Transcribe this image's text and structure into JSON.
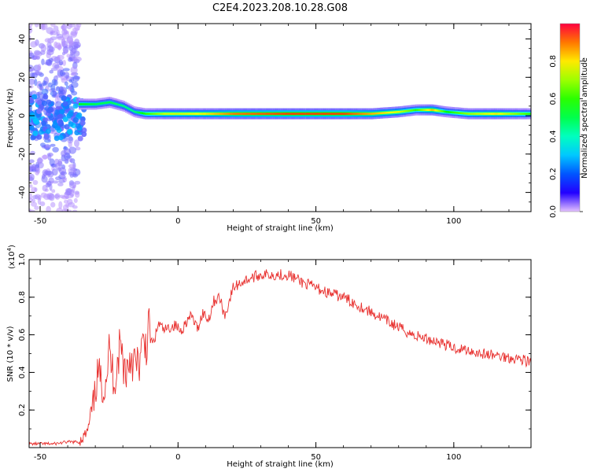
{
  "figure": {
    "title": "C2E4.2023.208.10.28.G08"
  },
  "chart_data": [
    {
      "type": "heatmap",
      "title": "C2E4.2023.208.10.28.G08",
      "xlabel": "Height of straight line (km)",
      "ylabel": "Frequency (Hz)",
      "xlim": [
        -54,
        128
      ],
      "ylim": [
        -50,
        48
      ],
      "x_ticks": [
        -50,
        0,
        50,
        100
      ],
      "x_tick_labels": [
        "-50",
        "0",
        "50",
        "100"
      ],
      "y_ticks": [
        -40,
        -20,
        0,
        20,
        40
      ],
      "y_tick_labels": [
        "-40",
        "-20",
        "0",
        "20",
        "40"
      ],
      "colorbar": {
        "label": "Normalized spectral amplitude",
        "range": [
          0,
          1
        ],
        "ticks": [
          0.0,
          0.2,
          0.4,
          0.6,
          0.8
        ],
        "tick_labels": [
          "0.0",
          "0.2",
          "0.4",
          "0.6",
          "0.8"
        ],
        "colormap": "hsl-rainbow-violet-to-red"
      },
      "ridge": [
        {
          "x": -36,
          "f": 6,
          "amp": 0.55
        },
        {
          "x": -30,
          "f": 6,
          "amp": 0.5
        },
        {
          "x": -25,
          "f": 7,
          "amp": 0.5
        },
        {
          "x": -20,
          "f": 5,
          "amp": 0.45
        },
        {
          "x": -16,
          "f": 2,
          "amp": 0.45
        },
        {
          "x": -12,
          "f": 1,
          "amp": 0.6
        },
        {
          "x": -5,
          "f": 1,
          "amp": 0.75
        },
        {
          "x": 0,
          "f": 1,
          "amp": 0.75
        },
        {
          "x": 10,
          "f": 1,
          "amp": 0.8
        },
        {
          "x": 20,
          "f": 1,
          "amp": 0.9
        },
        {
          "x": 40,
          "f": 1,
          "amp": 0.95
        },
        {
          "x": 60,
          "f": 1,
          "amp": 0.95
        },
        {
          "x": 70,
          "f": 1,
          "amp": 0.85
        },
        {
          "x": 80,
          "f": 2,
          "amp": 0.75
        },
        {
          "x": 86,
          "f": 3,
          "amp": 0.6
        },
        {
          "x": 92,
          "f": 3,
          "amp": 0.85
        },
        {
          "x": 97,
          "f": 2,
          "amp": 0.55
        },
        {
          "x": 105,
          "f": 1,
          "amp": 0.7
        },
        {
          "x": 115,
          "f": 1,
          "amp": 0.8
        },
        {
          "x": 128,
          "f": 1,
          "amp": 0.6
        }
      ]
    },
    {
      "type": "line",
      "xlabel": "Height of straight line (km)",
      "ylabel": "SNR (10 * v/v)",
      "y_exponent_label": "(x10",
      "y_exponent": "4",
      "xlim": [
        -54,
        128
      ],
      "ylim": [
        0,
        1.0
      ],
      "x_ticks": [
        -50,
        0,
        50,
        100
      ],
      "x_tick_labels": [
        "-50",
        "0",
        "50",
        "100"
      ],
      "y_ticks": [
        0.2,
        0.4,
        0.6,
        0.8,
        1.0
      ],
      "y_tick_labels": [
        "0.2",
        "0.4",
        "0.6",
        "0.8",
        "1.0"
      ],
      "series": [
        {
          "color": "#e8302e",
          "x": [
            -54,
            -45,
            -40,
            -36,
            -33,
            -31,
            -29,
            -27,
            -25,
            -23,
            -21,
            -19,
            -17,
            -15,
            -13,
            -11,
            -9,
            -7,
            -5,
            -3,
            -1,
            1,
            3,
            5,
            7,
            9,
            11,
            13,
            15,
            17,
            20,
            23,
            26,
            30,
            35,
            40,
            45,
            50,
            55,
            60,
            65,
            70,
            75,
            80,
            85,
            90,
            95,
            100,
            105,
            110,
            115,
            120,
            125,
            128
          ],
          "values": [
            0.02,
            0.02,
            0.03,
            0.03,
            0.08,
            0.2,
            0.4,
            0.3,
            0.5,
            0.35,
            0.55,
            0.4,
            0.5,
            0.42,
            0.5,
            0.6,
            0.55,
            0.66,
            0.62,
            0.64,
            0.65,
            0.62,
            0.67,
            0.7,
            0.63,
            0.72,
            0.68,
            0.78,
            0.8,
            0.7,
            0.85,
            0.88,
            0.9,
            0.92,
            0.92,
            0.92,
            0.88,
            0.85,
            0.82,
            0.8,
            0.76,
            0.72,
            0.68,
            0.64,
            0.6,
            0.58,
            0.56,
            0.53,
            0.52,
            0.5,
            0.49,
            0.48,
            0.47,
            0.45
          ]
        }
      ]
    }
  ]
}
